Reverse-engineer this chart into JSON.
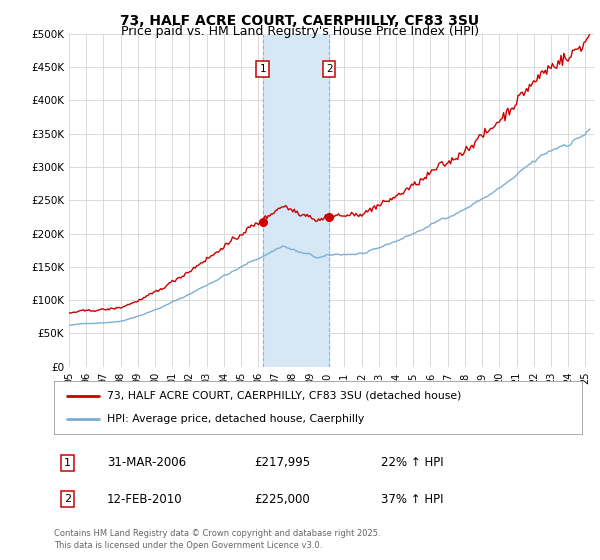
{
  "title": "73, HALF ACRE COURT, CAERPHILLY, CF83 3SU",
  "subtitle": "Price paid vs. HM Land Registry's House Price Index (HPI)",
  "legend_line1": "73, HALF ACRE COURT, CAERPHILLY, CF83 3SU (detached house)",
  "legend_line2": "HPI: Average price, detached house, Caerphilly",
  "annotation1_date": "31-MAR-2006",
  "annotation1_price": "£217,995",
  "annotation1_hpi": "22% ↑ HPI",
  "annotation2_date": "12-FEB-2010",
  "annotation2_price": "£225,000",
  "annotation2_hpi": "37% ↑ HPI",
  "footnote": "Contains HM Land Registry data © Crown copyright and database right 2025.\nThis data is licensed under the Open Government Licence v3.0.",
  "sale1_date_num": 2006.25,
  "sale1_value": 217995,
  "sale2_date_num": 2010.12,
  "sale2_value": 225000,
  "ylim": [
    0,
    500000
  ],
  "xlim_start": 1995.0,
  "xlim_end": 2025.5,
  "hpi_color": "#7bafd4",
  "price_color": "#cc0000",
  "shade_color": "#d6e8f5",
  "grid_color": "#cccccc",
  "background_color": "#ffffff",
  "title_fontsize": 10,
  "subtitle_fontsize": 9
}
